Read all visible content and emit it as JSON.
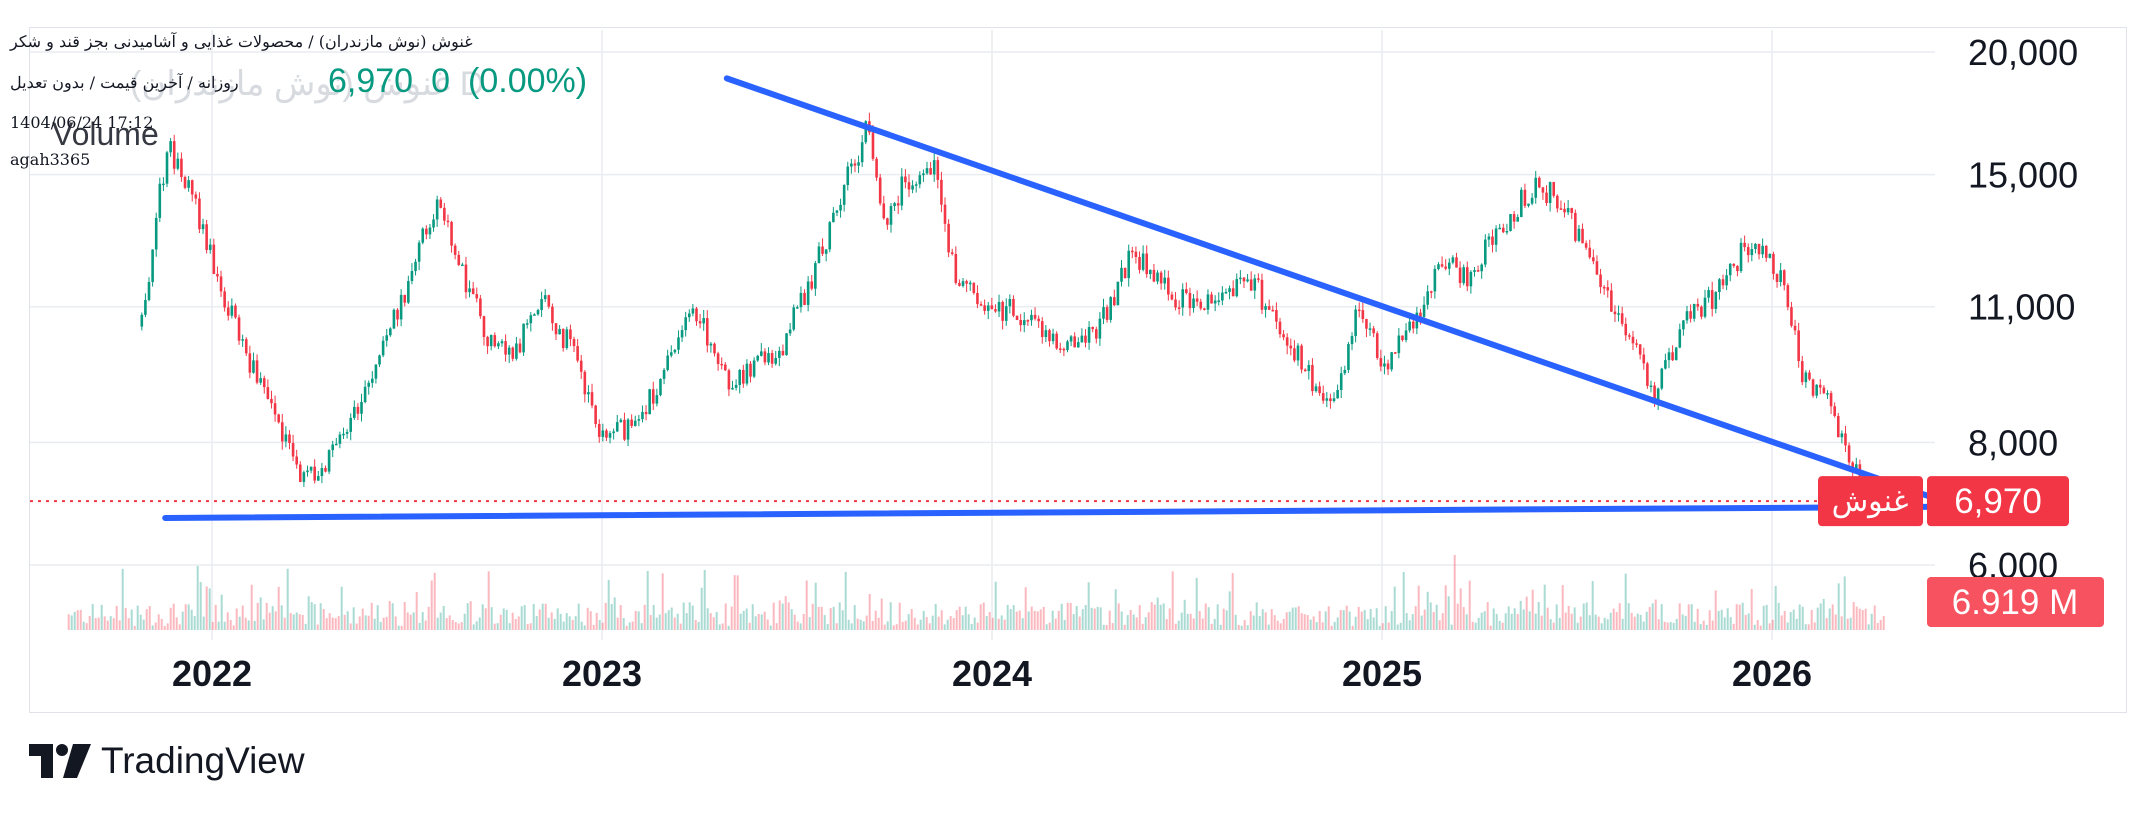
{
  "header": {
    "symbol_title": "غنوش (نوش مازندران) / محصولات غذایی و آشامیدنی بجز قند و شکر",
    "interval_info": "روزانه / آخرین قیمت / بدون تعدیل",
    "datetime": "1404/06/24 17:12",
    "author": "agah3365",
    "ghost_symbol": "غنوش (نوش مازندران) D",
    "volume_label": "Volume",
    "last_price": "6,970",
    "change": "0",
    "change_pct": "(0.00%)"
  },
  "badges": {
    "symbol": "غنوش",
    "price": "6,970",
    "volume": "6.919 M"
  },
  "watermark": {
    "text": "TradingView"
  },
  "colors": {
    "up": "#089981",
    "down": "#f23645",
    "trendline": "#2962ff",
    "grid": "#e9ecf1",
    "price_badge": "#f23645",
    "volume_badge": "#f7525f",
    "axis_text": "#131722"
  },
  "chart_data": {
    "type": "candlestick",
    "y_scale": "log",
    "ylim": [
      5500,
      20000
    ],
    "y_ticks": [
      20000,
      15000,
      11000,
      8000,
      6000
    ],
    "y_tick_labels": [
      "20,000",
      "15,000",
      "11,000",
      "8,000",
      "6,000"
    ],
    "x_range": [
      2021.65,
      2026.4
    ],
    "x_ticks": [
      2022,
      2023,
      2024,
      2025,
      2026
    ],
    "x_tick_labels": [
      "2022",
      "2023",
      "2024",
      "2025",
      "2026"
    ],
    "last_price": 6970,
    "last_volume": "6.919 M",
    "series": [
      {
        "name": "price",
        "points": [
          [
            2021.82,
            10500
          ],
          [
            2021.86,
            14000
          ],
          [
            2021.89,
            16000
          ],
          [
            2021.95,
            14200
          ],
          [
            2022.02,
            11500
          ],
          [
            2022.1,
            9600
          ],
          [
            2022.18,
            8100
          ],
          [
            2022.24,
            7300
          ],
          [
            2022.32,
            7900
          ],
          [
            2022.4,
            9200
          ],
          [
            2022.48,
            11000
          ],
          [
            2022.55,
            13200
          ],
          [
            2022.59,
            14100
          ],
          [
            2022.64,
            12000
          ],
          [
            2022.7,
            10400
          ],
          [
            2022.77,
            9700
          ],
          [
            2022.84,
            11200
          ],
          [
            2022.92,
            10000
          ],
          [
            2023.0,
            8000
          ],
          [
            2023.08,
            8400
          ],
          [
            2023.16,
            9400
          ],
          [
            2023.24,
            11000
          ],
          [
            2023.32,
            9200
          ],
          [
            2023.4,
            9600
          ],
          [
            2023.46,
            10000
          ],
          [
            2023.54,
            11800
          ],
          [
            2023.62,
            14500
          ],
          [
            2023.68,
            16800
          ],
          [
            2023.72,
            13500
          ],
          [
            2023.78,
            14800
          ],
          [
            2023.85,
            15500
          ],
          [
            2023.9,
            12000
          ],
          [
            2023.98,
            10800
          ],
          [
            2024.05,
            11000
          ],
          [
            2024.12,
            10500
          ],
          [
            2024.2,
            10000
          ],
          [
            2024.28,
            10600
          ],
          [
            2024.36,
            12500
          ],
          [
            2024.44,
            11500
          ],
          [
            2024.52,
            11000
          ],
          [
            2024.6,
            11500
          ],
          [
            2024.66,
            11800
          ],
          [
            2024.74,
            10500
          ],
          [
            2024.82,
            9200
          ],
          [
            2024.88,
            8600
          ],
          [
            2024.94,
            11200
          ],
          [
            2025.0,
            9600
          ],
          [
            2025.08,
            10600
          ],
          [
            2025.16,
            12200
          ],
          [
            2025.22,
            11800
          ],
          [
            2025.32,
            13500
          ],
          [
            2025.4,
            14800
          ],
          [
            2025.48,
            13600
          ],
          [
            2025.55,
            12000
          ],
          [
            2025.62,
            10500
          ],
          [
            2025.7,
            9000
          ],
          [
            2025.78,
            10600
          ],
          [
            2025.86,
            11400
          ],
          [
            2025.93,
            12600
          ],
          [
            2025.97,
            12400
          ],
          [
            2026.02,
            11800
          ],
          [
            2026.08,
            9300
          ],
          [
            2026.14,
            9000
          ],
          [
            2026.2,
            7700
          ],
          [
            2026.25,
            7000
          ],
          [
            2026.29,
            6970
          ]
        ]
      }
    ],
    "trendlines": [
      {
        "name": "descending",
        "from": [
          2023.32,
          18800
        ],
        "to": [
          2026.47,
          6900
        ]
      },
      {
        "name": "support",
        "from": [
          2021.88,
          6700
        ],
        "to": [
          2026.48,
          6880
        ]
      }
    ],
    "reference_lines": [
      {
        "name": "last-price",
        "y": 6970,
        "style": "dotted"
      }
    ]
  }
}
